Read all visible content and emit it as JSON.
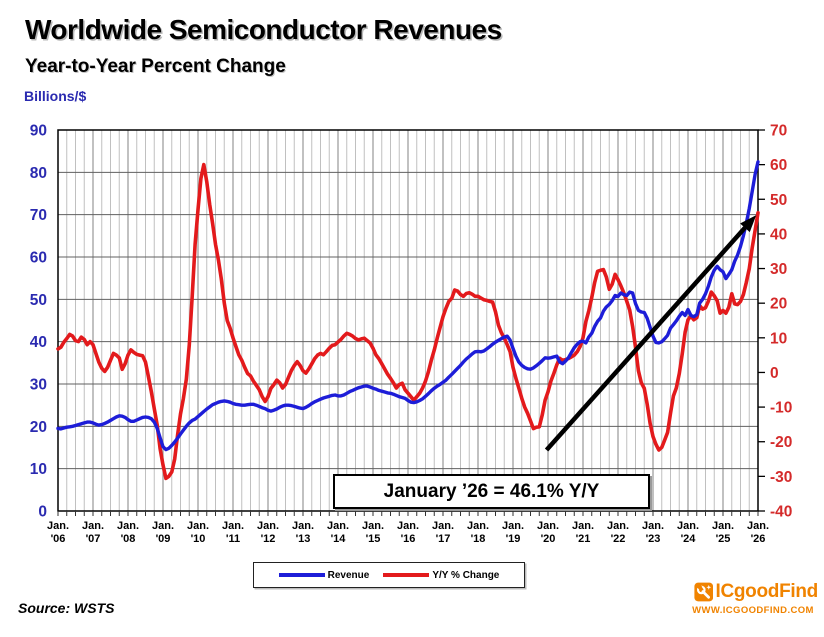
{
  "header": {
    "title": "Worldwide Semiconductor Revenues",
    "subtitle": "Year-to-Year Percent Change"
  },
  "chart_data": {
    "type": "line",
    "x_start": "Jan 2006",
    "x_end": "Jan 2026",
    "x_interval": "monthly",
    "x_tick_month": "Jan.",
    "x_tick_years": [
      "'06",
      "'07",
      "'08",
      "'09",
      "'10",
      "'11",
      "'12",
      "'13",
      "'14",
      "'15",
      "'16",
      "'17",
      "'18",
      "'19",
      "'20",
      "'21",
      "'22",
      "'23",
      "'24",
      "'25",
      "'26"
    ],
    "left_axis": {
      "title": "Billions/$",
      "min": 0,
      "max": 90,
      "step": 10,
      "color": "#2a2ab0"
    },
    "right_axis": {
      "min": -40,
      "max": 70,
      "step": 10,
      "color": "#d42a2a"
    },
    "grid": {
      "h_color": "#606060",
      "v_minor_color": "#c0c0c0",
      "v_year_color": "#989898",
      "border_color": "#000000"
    },
    "annotation": {
      "label": "January ’26 = 46.1% Y/Y",
      "arrow": {
        "from": {
          "m": 167.5,
          "v": 14.4
        },
        "to": {
          "m": 239.4,
          "v": 69.9
        },
        "color": "#000000"
      }
    },
    "series": [
      {
        "name": "Revenue",
        "axis": "left",
        "color": "#1d1dd8",
        "values": [
          19.5,
          19.4,
          19.6,
          19.8,
          19.9,
          20.0,
          20.2,
          20.4,
          20.6,
          20.8,
          21.0,
          21.0,
          20.8,
          20.5,
          20.3,
          20.4,
          20.7,
          21.0,
          21.4,
          21.8,
          22.2,
          22.5,
          22.4,
          22.1,
          21.6,
          21.2,
          21.2,
          21.5,
          21.8,
          22.1,
          22.2,
          22.1,
          21.8,
          21.0,
          19.5,
          17.3,
          15.2,
          14.5,
          14.8,
          15.5,
          16.3,
          17.2,
          18.2,
          19.1,
          20.0,
          20.8,
          21.4,
          21.7,
          22.3,
          22.9,
          23.5,
          24.1,
          24.6,
          25.1,
          25.4,
          25.7,
          25.9,
          26.0,
          25.9,
          25.7,
          25.4,
          25.2,
          25.1,
          25.0,
          25.0,
          25.1,
          25.2,
          25.2,
          25.0,
          24.7,
          24.4,
          24.2,
          23.8,
          23.6,
          23.8,
          24.1,
          24.5,
          24.8,
          25.0,
          25.0,
          24.9,
          24.7,
          24.5,
          24.3,
          24.2,
          24.5,
          24.9,
          25.4,
          25.8,
          26.1,
          26.4,
          26.7,
          26.9,
          27.1,
          27.3,
          27.4,
          27.2,
          27.2,
          27.4,
          27.8,
          28.2,
          28.5,
          28.8,
          29.1,
          29.3,
          29.5,
          29.5,
          29.3,
          29.0,
          28.8,
          28.5,
          28.3,
          28.1,
          27.9,
          27.8,
          27.6,
          27.3,
          27.0,
          26.8,
          26.6,
          26.1,
          25.7,
          25.6,
          25.8,
          26.1,
          26.5,
          27.1,
          27.7,
          28.4,
          29.0,
          29.5,
          29.9,
          30.4,
          30.9,
          31.6,
          32.3,
          33.0,
          33.7,
          34.4,
          35.2,
          35.9,
          36.5,
          37.1,
          37.6,
          37.7,
          37.6,
          37.8,
          38.3,
          38.8,
          39.4,
          39.9,
          40.3,
          40.7,
          41.1,
          41.3,
          40.4,
          38.4,
          36.6,
          35.2,
          34.4,
          33.9,
          33.6,
          33.5,
          33.8,
          34.3,
          34.9,
          35.5,
          36.2,
          36.1,
          36.2,
          36.4,
          36.6,
          35.2,
          34.8,
          35.4,
          36.2,
          37.4,
          38.6,
          39.4,
          40.0,
          40.1,
          39.7,
          41.1,
          42.0,
          43.6,
          44.8,
          45.6,
          47.2,
          48.2,
          48.8,
          49.7,
          50.9,
          50.7,
          51.5,
          51.1,
          50.9,
          51.7,
          51.5,
          49.0,
          47.4,
          47.0,
          46.9,
          45.5,
          43.4,
          41.3,
          39.8,
          39.7,
          40.0,
          40.7,
          41.5,
          43.2,
          44.0,
          44.9,
          46.0,
          46.9,
          46.2,
          47.6,
          46.2,
          45.9,
          46.4,
          49.1,
          50.0,
          51.3,
          53.1,
          55.3,
          56.9,
          57.8,
          57.0,
          56.5,
          54.9,
          55.9,
          57.0,
          59.0,
          60.5,
          62.5,
          65.0,
          68.0,
          71.5,
          75.5,
          79.5,
          82.5
        ]
      },
      {
        "name": "Y/Y % Change",
        "axis": "right",
        "color": "#e31a1c",
        "values": [
          6.8,
          7.3,
          8.7,
          9.8,
          11.0,
          10.5,
          9.2,
          8.9,
          10.2,
          9.5,
          8.0,
          8.9,
          8.0,
          5.5,
          3.0,
          1.2,
          0.3,
          1.5,
          3.5,
          5.5,
          5.0,
          4.2,
          0.9,
          2.5,
          5.0,
          6.5,
          5.8,
          5.2,
          5.0,
          4.8,
          3.0,
          -1.2,
          -5.5,
          -10.5,
          -15.2,
          -22.0,
          -26.7,
          -30.6,
          -30.0,
          -28.7,
          -25.0,
          -18.0,
          -12.0,
          -7.5,
          -2.0,
          8.0,
          22.0,
          37.0,
          47.0,
          56.0,
          60.0,
          55.0,
          48.5,
          43.0,
          37.0,
          32.5,
          27.0,
          20.0,
          15.0,
          12.8,
          10.0,
          7.5,
          5.1,
          3.5,
          1.5,
          -0.3,
          -1.0,
          -2.5,
          -3.7,
          -5.0,
          -7.0,
          -8.4,
          -7.0,
          -4.6,
          -3.5,
          -2.2,
          -3.0,
          -4.5,
          -3.5,
          -1.5,
          0.5,
          2.0,
          3.1,
          2.0,
          0.5,
          -0.2,
          1.0,
          2.5,
          4.0,
          5.0,
          5.5,
          5.1,
          6.0,
          7.0,
          7.8,
          8.0,
          8.8,
          9.5,
          10.5,
          11.3,
          11.0,
          10.5,
          9.8,
          9.4,
          9.7,
          9.9,
          9.2,
          8.5,
          7.0,
          5.1,
          4.0,
          2.5,
          1.0,
          -0.5,
          -1.7,
          -3.0,
          -4.5,
          -3.5,
          -3.1,
          -5.0,
          -6.0,
          -7.0,
          -8.0,
          -7.0,
          -6.0,
          -4.5,
          -2.5,
          0.2,
          3.5,
          6.5,
          9.9,
          13.0,
          16.1,
          18.5,
          20.5,
          21.4,
          23.8,
          23.5,
          22.5,
          22.0,
          22.8,
          23.0,
          22.6,
          22.0,
          22.0,
          21.5,
          21.0,
          20.8,
          20.5,
          20.3,
          17.5,
          13.7,
          11.5,
          9.9,
          8.0,
          6.0,
          1.5,
          -1.7,
          -4.5,
          -7.5,
          -10.0,
          -11.8,
          -14.0,
          -16.2,
          -15.8,
          -15.7,
          -12.3,
          -8.0,
          -5.6,
          -2.5,
          -0.3,
          2.2,
          4.1,
          3.5,
          3.7,
          4.0,
          4.5,
          5.0,
          6.0,
          7.5,
          10.0,
          14.7,
          17.8,
          21.7,
          26.0,
          29.2,
          29.5,
          29.7,
          27.6,
          24.0,
          25.5,
          28.3,
          26.8,
          25.0,
          23.0,
          20.5,
          18.0,
          13.3,
          7.3,
          0.5,
          -3.0,
          -4.6,
          -9.2,
          -14.7,
          -18.5,
          -20.7,
          -22.4,
          -21.6,
          -19.5,
          -17.3,
          -11.8,
          -6.8,
          -4.5,
          -0.3,
          5.3,
          11.6,
          15.2,
          16.3,
          15.2,
          15.8,
          19.3,
          18.3,
          18.7,
          20.6,
          23.2,
          22.1,
          20.7,
          17.1,
          17.9,
          17.1,
          18.8,
          22.7,
          19.8,
          19.6,
          20.5,
          22.5,
          26.0,
          30.0,
          36.0,
          41.0,
          46.1
        ]
      }
    ]
  },
  "footer": {
    "source": "Source: WSTS",
    "logo_text": "ICgoodFind",
    "logo_url": "WWW.ICGOODFIND.COM",
    "logo_color": "#f08300"
  }
}
